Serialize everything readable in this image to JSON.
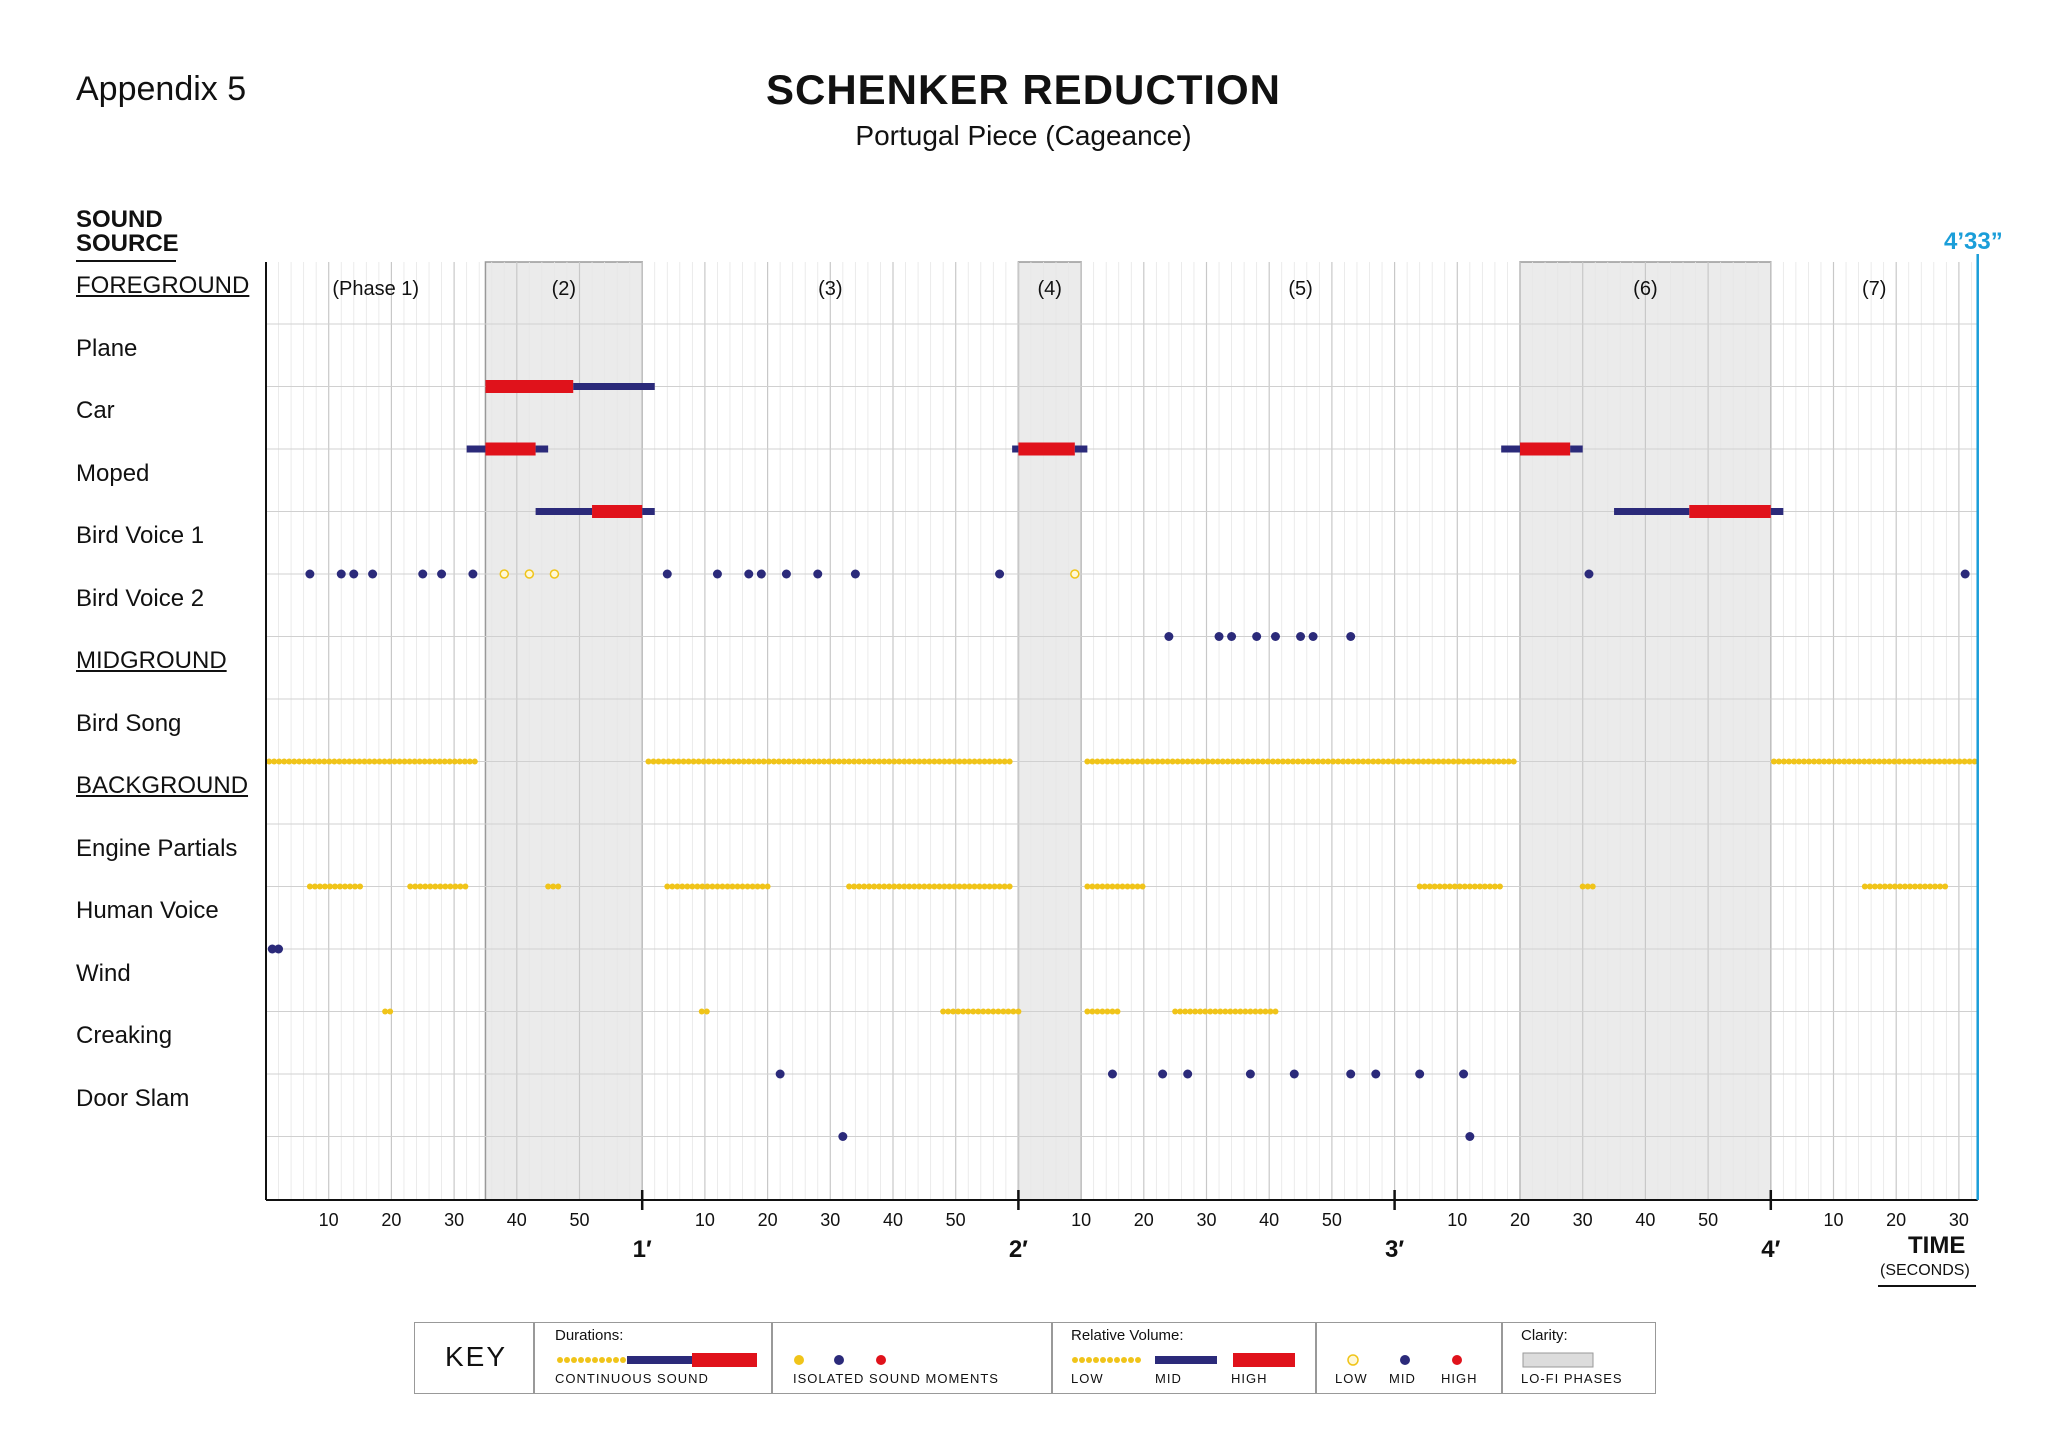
{
  "header": {
    "appendix": "Appendix 5",
    "title": "SCHENKER REDUCTION",
    "subtitle": "Portugal Piece (Cageance)",
    "source_heading_line1": "SOUND",
    "source_heading_line2": "SOURCE",
    "end_time": "4’33”",
    "time_label": "TIME",
    "seconds_label": "(SECONDS)"
  },
  "colors": {
    "low": "#f0c419",
    "mid": "#2b2a7a",
    "high": "#e0121b",
    "lofi": "#ebebeb",
    "end_line": "#1a9ed9"
  },
  "chart_data": {
    "type": "timeline",
    "x_range_seconds": [
      0,
      273
    ],
    "minute_labels": [
      "1′",
      "2′",
      "3′",
      "4′"
    ],
    "tick_labels": [
      "10",
      "20",
      "30",
      "40",
      "50"
    ],
    "end_tick_labels": [
      "10",
      "20",
      "30"
    ],
    "phases": [
      {
        "label": "(Phase 1)",
        "start": 0,
        "end": 35,
        "lofi": false
      },
      {
        "label": "(2)",
        "start": 35,
        "end": 60,
        "lofi": true
      },
      {
        "label": "(3)",
        "start": 60,
        "end": 120,
        "lofi": false
      },
      {
        "label": "(4)",
        "start": 120,
        "end": 130,
        "lofi": true
      },
      {
        "label": "(5)",
        "start": 130,
        "end": 200,
        "lofi": false
      },
      {
        "label": "(6)",
        "start": 200,
        "end": 240,
        "lofi": true
      },
      {
        "label": "(7)",
        "start": 240,
        "end": 273,
        "lofi": false
      }
    ],
    "rows": [
      {
        "label": "FOREGROUND",
        "heading": true
      },
      {
        "label": "Plane",
        "bars": [
          {
            "start": 35,
            "end": 49,
            "level": "high"
          },
          {
            "start": 49,
            "end": 62,
            "level": "mid"
          }
        ]
      },
      {
        "label": "Car",
        "bars": [
          {
            "start": 32,
            "end": 35,
            "level": "mid"
          },
          {
            "start": 35,
            "end": 43,
            "level": "high"
          },
          {
            "start": 43,
            "end": 45,
            "level": "mid"
          },
          {
            "start": 119,
            "end": 120,
            "level": "mid"
          },
          {
            "start": 120,
            "end": 129,
            "level": "high"
          },
          {
            "start": 129,
            "end": 131,
            "level": "mid"
          },
          {
            "start": 197,
            "end": 200,
            "level": "mid"
          },
          {
            "start": 200,
            "end": 208,
            "level": "high"
          },
          {
            "start": 208,
            "end": 210,
            "level": "mid"
          }
        ]
      },
      {
        "label": "Moped",
        "bars": [
          {
            "start": 43,
            "end": 52,
            "level": "mid"
          },
          {
            "start": 52,
            "end": 60,
            "level": "high"
          },
          {
            "start": 60,
            "end": 62,
            "level": "mid"
          },
          {
            "start": 215,
            "end": 227,
            "level": "mid"
          },
          {
            "start": 227,
            "end": 240,
            "level": "high"
          },
          {
            "start": 240,
            "end": 242,
            "level": "mid"
          }
        ]
      },
      {
        "label": "Bird Voice 1",
        "mid_points": [
          7,
          12,
          14,
          17,
          25,
          28,
          33,
          64,
          72,
          77,
          79,
          83,
          88,
          94,
          117,
          211,
          271
        ],
        "low_points": [
          38,
          42,
          46,
          129
        ]
      },
      {
        "label": "Bird Voice 2",
        "mid_points": [
          144,
          152,
          154,
          158,
          161,
          165,
          167,
          173
        ]
      },
      {
        "label": "MIDGROUND",
        "heading": true
      },
      {
        "label": "Bird Song",
        "low_runs": [
          [
            0.5,
            34
          ],
          [
            61,
            119
          ],
          [
            131,
            199
          ],
          [
            240.5,
            272.5
          ]
        ]
      },
      {
        "label": "BACKGROUND",
        "heading": true
      },
      {
        "label": "Engine Partials",
        "low_runs": [
          [
            7,
            15
          ],
          [
            23,
            32
          ],
          [
            45,
            47
          ],
          [
            64,
            80
          ],
          [
            93,
            119
          ],
          [
            131,
            140
          ],
          [
            184,
            197
          ],
          [
            210,
            212
          ],
          [
            255,
            268
          ]
        ]
      },
      {
        "label": "Human Voice",
        "mid_points": [
          1,
          2
        ]
      },
      {
        "label": "Wind",
        "low_runs": [
          [
            19,
            20.5
          ],
          [
            69.5,
            71
          ],
          [
            108,
            120
          ],
          [
            131,
            136
          ],
          [
            145,
            161
          ]
        ]
      },
      {
        "label": "Creaking",
        "mid_points": [
          82,
          135,
          143,
          147,
          157,
          164,
          173,
          177,
          184,
          191
        ]
      },
      {
        "label": "Door Slam",
        "mid_points": [
          92,
          192
        ]
      }
    ]
  },
  "key": {
    "title": "KEY",
    "durations_header": "Durations:",
    "continuous_label": "CONTINUOUS SOUND",
    "isolated_label": "ISOLATED SOUND MOMENTS",
    "volume_header": "Relative Volume:",
    "low_label": "LOW",
    "mid_label": "MID",
    "high_label": "HIGH",
    "low_label_2": "LOW",
    "mid_label_2": "MID",
    "high_label_2": "HIGH",
    "clarity_header": "Clarity:",
    "lofi_label": "LO-FI PHASES"
  }
}
